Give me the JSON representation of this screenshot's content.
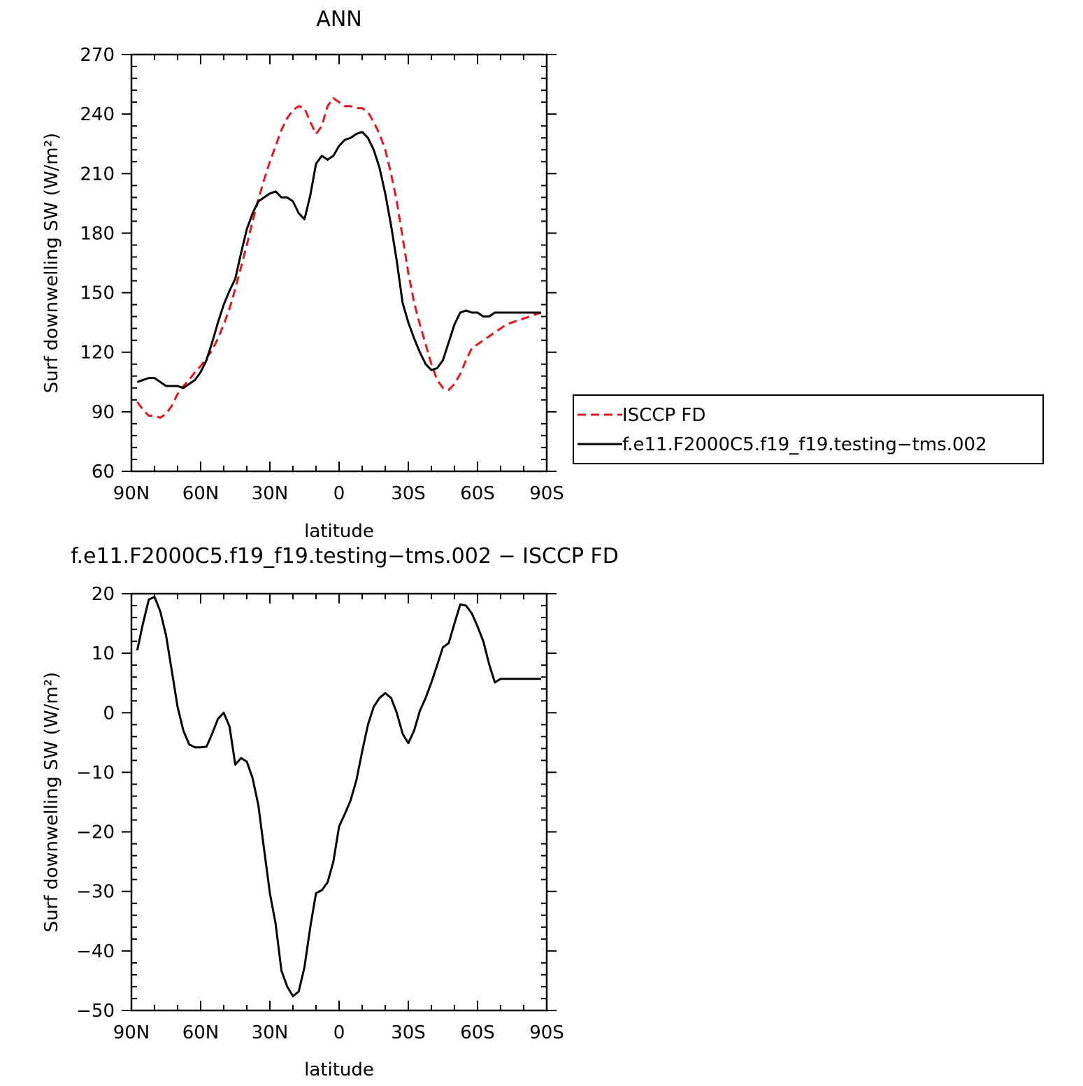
{
  "chart_data": [
    {
      "type": "line",
      "title": "ANN",
      "xlabel": "latitude",
      "ylabel": "Surf downwelling SW (W/m²)",
      "xlim": [
        -90,
        90
      ],
      "ylim": [
        60,
        270
      ],
      "x_ticks": [
        -90,
        -60,
        -30,
        0,
        30,
        60,
        90
      ],
      "x_tick_labels": [
        "90N",
        "60N",
        "30N",
        "0",
        "30S",
        "60S",
        "90S"
      ],
      "y_ticks": [
        60,
        90,
        120,
        150,
        180,
        210,
        240,
        270
      ],
      "y_tick_labels": [
        "60",
        "90",
        "120",
        "150",
        "180",
        "210",
        "240",
        "270"
      ],
      "legend": {
        "placement": "right",
        "border": true
      },
      "series": [
        {
          "name": "ISCCP FD",
          "color": "#e8141e",
          "dash": true,
          "x": [
            -87.5,
            -85,
            -82.5,
            -80,
            -77.5,
            -75,
            -72.5,
            -70,
            -67.5,
            -65,
            -62.5,
            -60,
            -57.5,
            -55,
            -52.5,
            -50,
            -47.5,
            -45,
            -42.5,
            -40,
            -37.5,
            -35,
            -32.5,
            -30,
            -27.5,
            -25,
            -22.5,
            -20,
            -17.5,
            -15,
            -12.5,
            -10,
            -7.5,
            -5,
            -2.5,
            0,
            2.5,
            5,
            7.5,
            10,
            12.5,
            15,
            17.5,
            20,
            22.5,
            25,
            27.5,
            30,
            32.5,
            35,
            37.5,
            40,
            42.5,
            45,
            47.5,
            50,
            52.5,
            55,
            57.5,
            60,
            62.5,
            65,
            67.5,
            70,
            72.5,
            75,
            77.5,
            80,
            82.5,
            85,
            87.5
          ],
          "y": [
            95,
            91,
            88,
            88,
            87,
            89,
            93,
            99,
            103,
            106,
            110,
            113,
            117,
            121,
            127,
            134,
            142,
            152,
            163,
            174,
            186,
            197,
            207,
            216,
            224,
            232,
            238,
            242,
            244,
            243,
            236,
            230,
            234,
            244,
            248,
            246,
            244,
            244,
            243,
            243,
            241,
            236,
            230,
            222,
            210,
            196,
            178,
            160,
            145,
            134,
            124,
            114,
            106,
            102,
            101,
            104,
            109,
            116,
            122,
            124,
            126,
            128,
            130,
            132,
            134,
            135,
            136,
            137,
            138,
            139,
            140
          ]
        },
        {
          "name": "f.e11.F2000C5.f19_f19.testing−tms.002",
          "color": "#000000",
          "dash": false,
          "x": [
            -87.5,
            -85,
            -82.5,
            -80,
            -77.5,
            -75,
            -72.5,
            -70,
            -67.5,
            -65,
            -62.5,
            -60,
            -57.5,
            -55,
            -52.5,
            -50,
            -47.5,
            -45,
            -42.5,
            -40,
            -37.5,
            -35,
            -32.5,
            -30,
            -27.5,
            -25,
            -22.5,
            -20,
            -17.5,
            -15,
            -12.5,
            -10,
            -7.5,
            -5,
            -2.5,
            0,
            2.5,
            5,
            7.5,
            10,
            12.5,
            15,
            17.5,
            20,
            22.5,
            25,
            27.5,
            30,
            32.5,
            35,
            37.5,
            40,
            42.5,
            45,
            47.5,
            50,
            52.5,
            55,
            57.5,
            60,
            62.5,
            65,
            67.5,
            70,
            72.5,
            75,
            77.5,
            80,
            82.5,
            85,
            87.5
          ],
          "y": [
            105,
            106,
            107,
            107,
            105,
            103,
            103,
            103,
            102,
            104,
            106,
            110,
            116,
            125,
            135,
            144,
            151,
            157,
            170,
            182,
            190,
            196,
            198,
            200,
            201,
            198,
            198,
            196,
            190,
            187,
            199,
            215,
            219,
            217,
            219,
            224,
            227,
            228,
            230,
            231,
            228,
            222,
            213,
            200,
            184,
            166,
            145,
            135,
            127,
            120,
            114,
            111,
            112,
            116,
            125,
            134,
            140,
            141,
            140,
            140,
            138,
            138,
            140,
            140,
            140,
            140,
            140,
            140,
            140,
            140,
            140
          ]
        }
      ]
    },
    {
      "type": "line",
      "title": "f.e11.F2000C5.f19_f19.testing−tms.002 − ISCCP FD",
      "xlabel": "latitude",
      "ylabel": "Surf downwelling SW (W/m²)",
      "xlim": [
        -90,
        90
      ],
      "ylim": [
        -50,
        20
      ],
      "x_ticks": [
        -90,
        -60,
        -30,
        0,
        30,
        60,
        90
      ],
      "x_tick_labels": [
        "90N",
        "60N",
        "30N",
        "0",
        "30S",
        "60S",
        "90S"
      ],
      "y_ticks": [
        -50,
        -40,
        -30,
        -20,
        -10,
        0,
        10,
        20
      ],
      "y_tick_labels": [
        "−50",
        "−40",
        "−30",
        "−20",
        "−10",
        "0",
        "10",
        "20"
      ],
      "series": [
        {
          "color": "#000000",
          "dash": false,
          "x": [
            -87.5,
            -85,
            -82.5,
            -80,
            -77.5,
            -75,
            -72.5,
            -70,
            -67.5,
            -65,
            -62.5,
            -60,
            -57.5,
            -55,
            -52.5,
            -50,
            -47.5,
            -45,
            -42.5,
            -40,
            -37.5,
            -35,
            -32.5,
            -30,
            -27.5,
            -25,
            -22.5,
            -20,
            -17.5,
            -15,
            -12.5,
            -10,
            -7.5,
            -5,
            -2.5,
            0,
            2.5,
            5,
            7.5,
            10,
            12.5,
            15,
            17.5,
            20,
            22.5,
            25,
            27.5,
            30,
            32.5,
            35,
            37.5,
            40,
            42.5,
            45,
            47.5,
            50,
            52.5,
            55,
            57.5,
            60,
            62.5,
            65,
            67.5,
            70,
            72.5,
            75,
            77.5,
            80,
            82.5,
            85,
            87.5
          ],
          "y": [
            10.5,
            15,
            19,
            19.5,
            17,
            13,
            7,
            1,
            -3,
            -5.3,
            -5.8,
            -5.8,
            -5.7,
            -3.5,
            -1,
            0,
            -2.3,
            -8.7,
            -7.6,
            -8.2,
            -11,
            -15.5,
            -23,
            -30.3,
            -35.5,
            -43.3,
            -46,
            -47.6,
            -46.8,
            -42.7,
            -36,
            -30.3,
            -29.8,
            -28.5,
            -25,
            -19.1,
            -17,
            -14.7,
            -11.3,
            -6.5,
            -2,
            1,
            2.5,
            3.3,
            2.5,
            0,
            -3.5,
            -5.1,
            -3,
            0.3,
            2.5,
            5.1,
            8,
            11,
            11.7,
            15,
            18.2,
            18,
            16.7,
            14.5,
            12,
            8.2,
            5.1,
            5.7,
            5.7,
            5.7,
            5.7,
            5.7,
            5.7,
            5.7,
            5.7
          ]
        }
      ]
    }
  ]
}
